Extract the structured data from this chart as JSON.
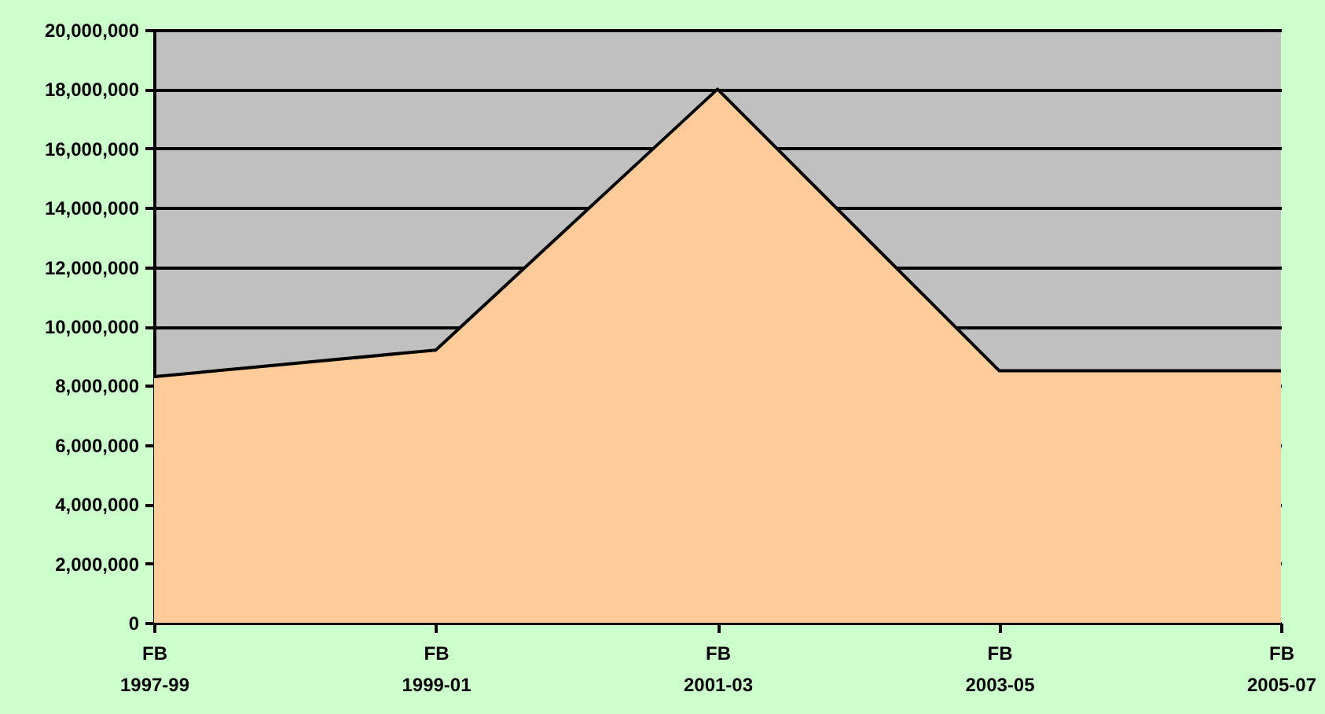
{
  "chart_data": {
    "type": "area",
    "categories": [
      "FB\n1997-99",
      "FB\n1999-01",
      "FB\n2001-03",
      "FB\n2003-05",
      "FB\n2005-07"
    ],
    "values": [
      8300000,
      9200000,
      18000000,
      8500000,
      8500000
    ],
    "color": "#ffcc99",
    "ylim": [
      0,
      20000000
    ],
    "yticks": [
      0,
      {
        "value": 2000000,
        "label": "2,000,000"
      },
      {
        "value": 4000000,
        "label": "4,000,000"
      },
      {
        "value": 6000000,
        "label": "6,000,000"
      },
      {
        "value": 8000000,
        "label": "8,000,000"
      },
      {
        "value": 10000000,
        "label": "10,000,000"
      },
      {
        "value": 12000000,
        "label": "12,000,000"
      },
      {
        "value": 14000000,
        "label": "14,000,000"
      },
      {
        "value": 16000000,
        "label": "16,000,000"
      },
      {
        "value": 18000000,
        "label": "18,000,000"
      },
      {
        "value": 20000000,
        "label": "20,000,000"
      }
    ],
    "grid": "y"
  }
}
